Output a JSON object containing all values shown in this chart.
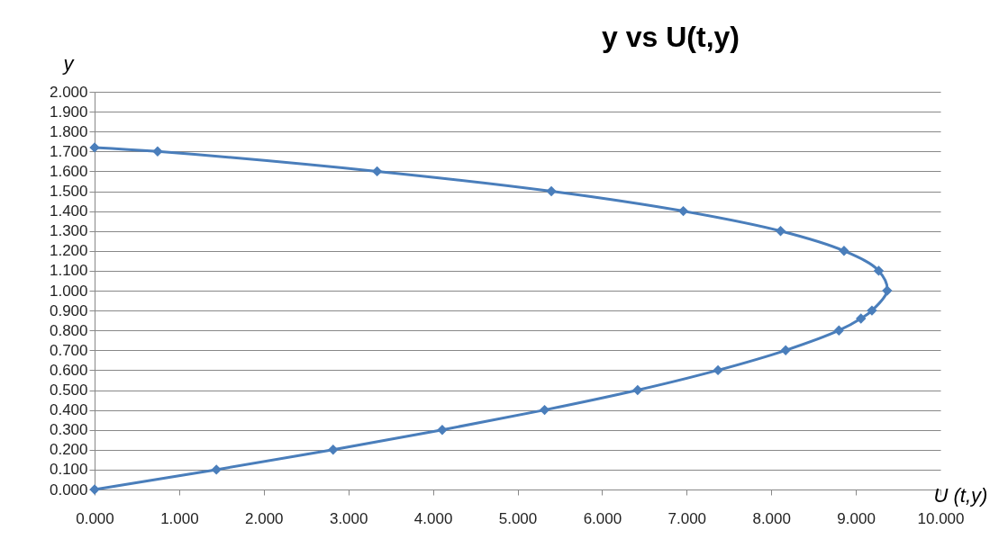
{
  "chart_data": {
    "type": "line",
    "title": "y vs U(t,y)",
    "xlabel": "U (t,y)",
    "ylabel": "y",
    "series": [
      {
        "color": "#4a7ebb",
        "x": [
          0,
          0.745,
          3.34,
          5.4,
          6.96,
          8.11,
          8.86,
          9.27,
          9.37,
          9.19,
          9.06,
          8.8,
          8.17,
          7.37,
          6.42,
          5.32,
          4.11,
          2.82,
          1.44,
          0
        ],
        "values": [
          1.72,
          1.7,
          1.6,
          1.5,
          1.4,
          1.3,
          1.2,
          1.1,
          1.0,
          0.9,
          0.86,
          0.8,
          0.7,
          0.6,
          0.5,
          0.4,
          0.3,
          0.2,
          0.1,
          0
        ]
      }
    ],
    "xlim": [
      0,
      10
    ],
    "ylim": [
      0,
      2
    ],
    "xticks": [
      {
        "value": 0,
        "label": "0.000"
      },
      {
        "value": 1,
        "label": "1.000"
      },
      {
        "value": 2,
        "label": "2.000"
      },
      {
        "value": 3,
        "label": "3.000"
      },
      {
        "value": 4,
        "label": "4.000"
      },
      {
        "value": 5,
        "label": "5.000"
      },
      {
        "value": 6,
        "label": "6.000"
      },
      {
        "value": 7,
        "label": "7.000"
      },
      {
        "value": 8,
        "label": "8.000"
      },
      {
        "value": 9,
        "label": "9.000"
      },
      {
        "value": 10,
        "label": "10.000"
      }
    ],
    "yticks": [
      {
        "value": 0,
        "label": "0.000"
      },
      {
        "value": 0.1,
        "label": "0.100"
      },
      {
        "value": 0.2,
        "label": "0.200"
      },
      {
        "value": 0.3,
        "label": "0.300"
      },
      {
        "value": 0.4,
        "label": "0.400"
      },
      {
        "value": 0.5,
        "label": "0.500"
      },
      {
        "value": 0.6,
        "label": "0.600"
      },
      {
        "value": 0.7,
        "label": "0.700"
      },
      {
        "value": 0.8,
        "label": "0.800"
      },
      {
        "value": 0.9,
        "label": "0.900"
      },
      {
        "value": 1,
        "label": "1.000"
      },
      {
        "value": 1.1,
        "label": "1.100"
      },
      {
        "value": 1.2,
        "label": "1.200"
      },
      {
        "value": 1.3,
        "label": "1.300"
      },
      {
        "value": 1.4,
        "label": "1.400"
      },
      {
        "value": 1.5,
        "label": "1.500"
      },
      {
        "value": 1.6,
        "label": "1.600"
      },
      {
        "value": 1.7,
        "label": "1.700"
      },
      {
        "value": 1.8,
        "label": "1.800"
      },
      {
        "value": 1.9,
        "label": "1.900"
      },
      {
        "value": 2,
        "label": "2.000"
      }
    ],
    "grid": "y",
    "marker": "diamond",
    "line_style": "solid"
  }
}
